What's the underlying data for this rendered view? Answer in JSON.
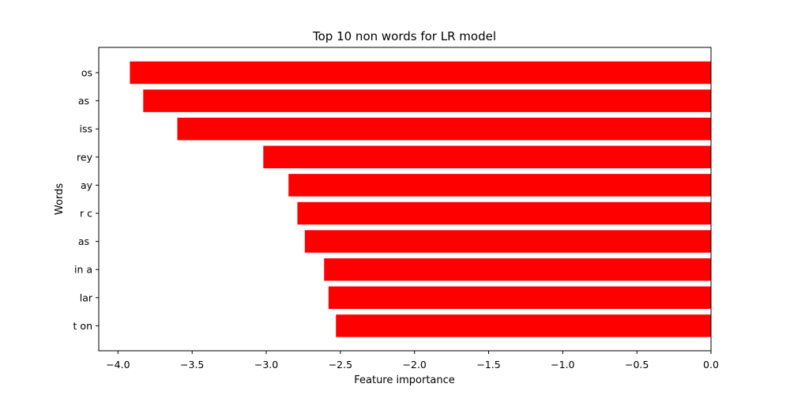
{
  "chart_data": {
    "type": "bar",
    "orientation": "horizontal",
    "title": "Top 10 non words for LR model",
    "xlabel": "Feature importance",
    "ylabel": "Words",
    "categories": [
      "os",
      "as ",
      "iss",
      "rey",
      "ay",
      "r c",
      "as ",
      "in a",
      "lar",
      "t on"
    ],
    "values": [
      -3.92,
      -3.83,
      -3.6,
      -3.02,
      -2.85,
      -2.79,
      -2.74,
      -2.61,
      -2.58,
      -2.53
    ],
    "xlim": [
      -4.13,
      0.0
    ],
    "xticks": [
      -4.0,
      -3.5,
      -3.0,
      -2.5,
      -2.0,
      -1.5,
      -1.0,
      -0.5,
      0.0
    ],
    "xtick_labels": [
      "−4.0",
      "−3.5",
      "−3.0",
      "−2.5",
      "−2.0",
      "−1.5",
      "−1.0",
      "−0.5",
      "0.0"
    ],
    "bar_color": "#ff0000",
    "grid": false,
    "legend": "none"
  }
}
